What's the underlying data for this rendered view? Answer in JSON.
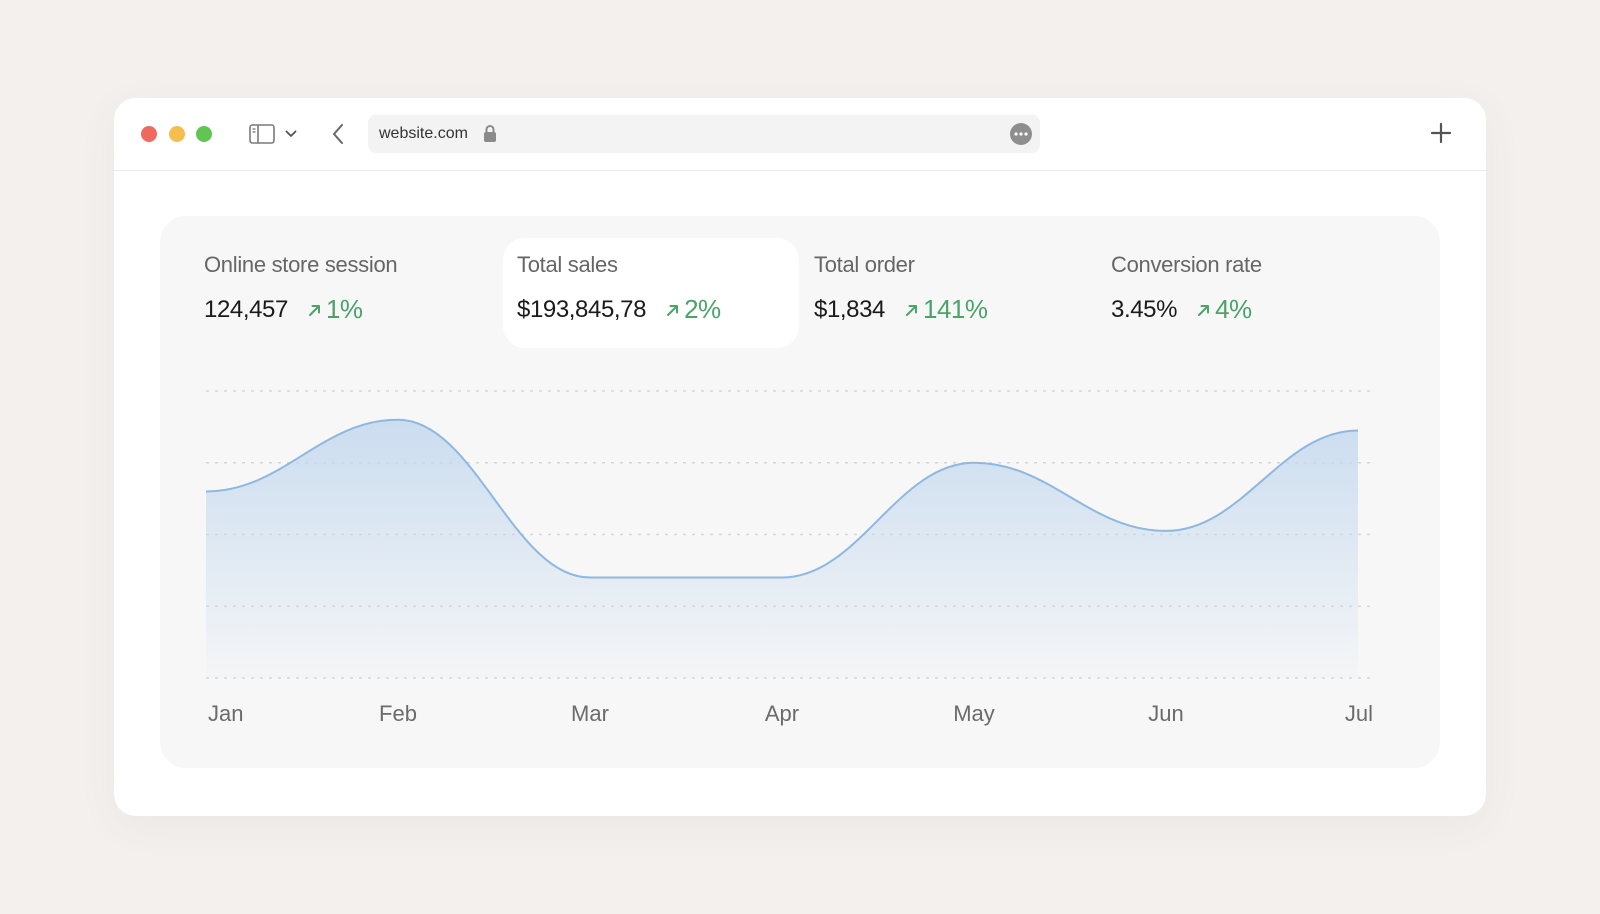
{
  "browser": {
    "url": "website.com"
  },
  "stats": [
    {
      "label": "Online store session",
      "value": "124,457",
      "change": "1%",
      "active": false
    },
    {
      "label": "Total sales",
      "value": "$193,845,78",
      "change": "2%",
      "active": true
    },
    {
      "label": "Total order",
      "value": "$1,834",
      "change": "141%",
      "active": false
    },
    {
      "label": "Conversion rate",
      "value": "3.45%",
      "change": "4%",
      "active": false
    }
  ],
  "colors": {
    "positive": "#4aa469",
    "line": "#8fb8e0",
    "fill": "#c9dcef",
    "panel": "#f7f7f7"
  },
  "chart_data": {
    "type": "area",
    "categories": [
      "Jan",
      "Feb",
      "Mar",
      "Apr",
      "May",
      "Jun",
      "Jul"
    ],
    "values": [
      2.6,
      3.6,
      1.4,
      1.4,
      3.0,
      2.05,
      3.45
    ],
    "ylim": [
      0,
      4
    ],
    "grid": true,
    "legend": "none"
  }
}
